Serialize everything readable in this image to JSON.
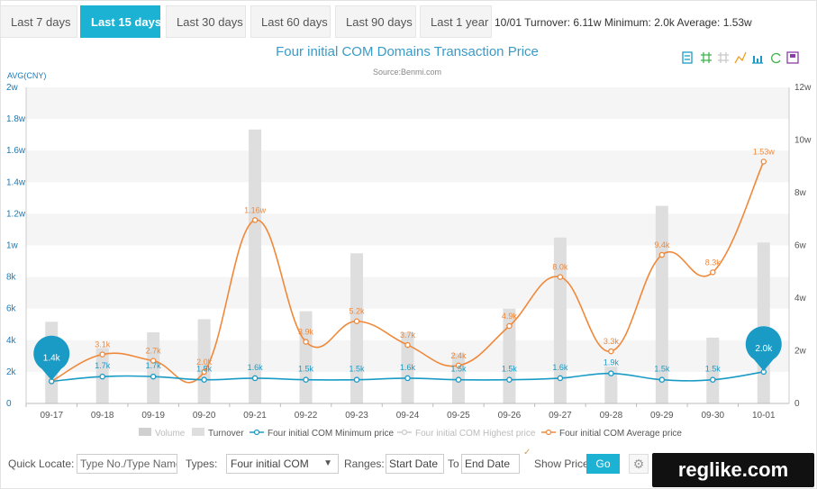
{
  "tabs": [
    "Last 7 days",
    "Last 15 days",
    "Last 30 days",
    "Last 60 days",
    "Last 90 days",
    "Last 1 year"
  ],
  "active_tab": 1,
  "summary": "10/01 Turnover: 6.11w Minimum: 2.0k Average: 1.53w",
  "toolbar_icons": [
    "data-view-icon",
    "zoom-icon",
    "zoom-reset-icon",
    "line-chart-icon",
    "bar-chart-icon",
    "restore-icon",
    "save-image-icon"
  ],
  "colors": {
    "accent": "#1bb2d4",
    "min_line": "#1a9bc6",
    "avg_line": "#f0883a",
    "bar": "#dedede",
    "pin": "#1a9bc6"
  },
  "chart_data": {
    "type": "bar",
    "title": "Four initial COM Domains Transaction Price",
    "subtitle": "Source:Benmi.com",
    "ylabel": "AVG(CNY)",
    "y_ticks_left": [
      "0",
      "2k",
      "4k",
      "6k",
      "8k",
      "1w",
      "1.2w",
      "1.4w",
      "1.6w",
      "1.8w",
      "2w"
    ],
    "y_ticks_right": [
      "0",
      "2w",
      "4w",
      "6w",
      "8w",
      "10w",
      "12w"
    ],
    "ylim_left": [
      0,
      20000
    ],
    "ylim_right": [
      0,
      120000
    ],
    "categories": [
      "09-17",
      "09-18",
      "09-19",
      "09-20",
      "09-21",
      "09-22",
      "09-23",
      "09-24",
      "09-25",
      "09-26",
      "09-27",
      "09-28",
      "09-29",
      "09-30",
      "10-01"
    ],
    "turnover": [
      31000,
      21000,
      27000,
      32000,
      104000,
      35000,
      57000,
      27000,
      19000,
      36000,
      63000,
      14000,
      75000,
      25000,
      61100
    ],
    "min_price": [
      1400,
      1700,
      1700,
      1500,
      1600,
      1500,
      1500,
      1600,
      1500,
      1500,
      1600,
      1900,
      1500,
      1500,
      2000
    ],
    "min_labels": [
      "1.4k",
      "1.7k",
      "1.7k",
      "1.5k",
      "1.6k",
      "1.5k",
      "1.5k",
      "1.6k",
      "1.5k",
      "1.5k",
      "1.6k",
      "1.9k",
      "1.5k",
      "1.5k",
      "2.0k"
    ],
    "avg_price": [
      1400,
      3100,
      2700,
      2000,
      11600,
      3900,
      5200,
      3700,
      2400,
      4900,
      8000,
      3300,
      9400,
      8300,
      15300
    ],
    "avg_labels": [
      "",
      "3.1k",
      "2.7k",
      "2.0k",
      "1.16w",
      "3.9k",
      "5.2k",
      "3.7k",
      "2.4k",
      "4.9k",
      "8.0k",
      "3.3k",
      "9.4k",
      "8.3k",
      "1.53w"
    ],
    "pins": [
      {
        "index": 0,
        "label": "1.4k"
      },
      {
        "index": 14,
        "label": "2.0k"
      }
    ],
    "legend": [
      "Volume",
      "Turnover",
      "Four initial COM Minimum price",
      "Four initial COM Highest price",
      "Four initial COM Average price"
    ],
    "legend_inactive": [
      0,
      3
    ],
    "legend_position": "bottom"
  },
  "controls": {
    "quick_locate_label": "Quick Locate:",
    "type_placeholder": "Type No./Type Name",
    "types_label": "Types:",
    "types_value": "Four initial COM",
    "ranges_label": "Ranges:",
    "start_placeholder": "Start Date",
    "to_label": "To",
    "end_placeholder": "End Date",
    "show_price_label": "Show Price",
    "go_label": "Go"
  },
  "watermark": "reglike.com"
}
